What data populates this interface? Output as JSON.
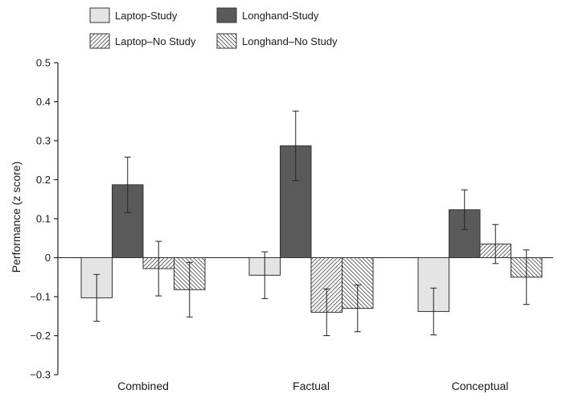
{
  "chart_data": {
    "type": "bar",
    "title": "",
    "xlabel": "",
    "ylabel": "Performance (z score)",
    "ylim": [
      -0.3,
      0.5
    ],
    "yticks": [
      "0.5",
      "0.4",
      "0.3",
      "0.2",
      "0.1",
      "0",
      "−0.1",
      "−0.2",
      "−0.3"
    ],
    "ytick_values": [
      0.5,
      0.4,
      0.3,
      0.2,
      0.1,
      0,
      -0.1,
      -0.2,
      -0.3
    ],
    "categories": [
      "Combined",
      "Factual",
      "Conceptual"
    ],
    "grid": false,
    "legend_position": "top",
    "error_bars": true,
    "series": [
      {
        "name": "Laptop-Study",
        "pattern": "solid",
        "color": "#e4e4e4",
        "values": [
          -0.103,
          -0.045,
          -0.138
        ],
        "err": [
          0.06,
          0.06,
          0.06
        ]
      },
      {
        "name": "Longhand-Study",
        "pattern": "solid",
        "color": "#5a5a5a",
        "values": [
          0.187,
          0.287,
          0.123
        ],
        "err": [
          0.071,
          0.089,
          0.051
        ]
      },
      {
        "name": "Laptop–No Study",
        "pattern": "hatch-forward",
        "color": "#ffffff",
        "values": [
          -0.028,
          -0.14,
          0.035
        ],
        "err": [
          0.07,
          0.06,
          0.05
        ]
      },
      {
        "name": "Longhand–No Study",
        "pattern": "hatch-back",
        "color": "#ffffff",
        "values": [
          -0.082,
          -0.13,
          -0.05
        ],
        "err": [
          0.07,
          0.06,
          0.07
        ]
      }
    ]
  }
}
